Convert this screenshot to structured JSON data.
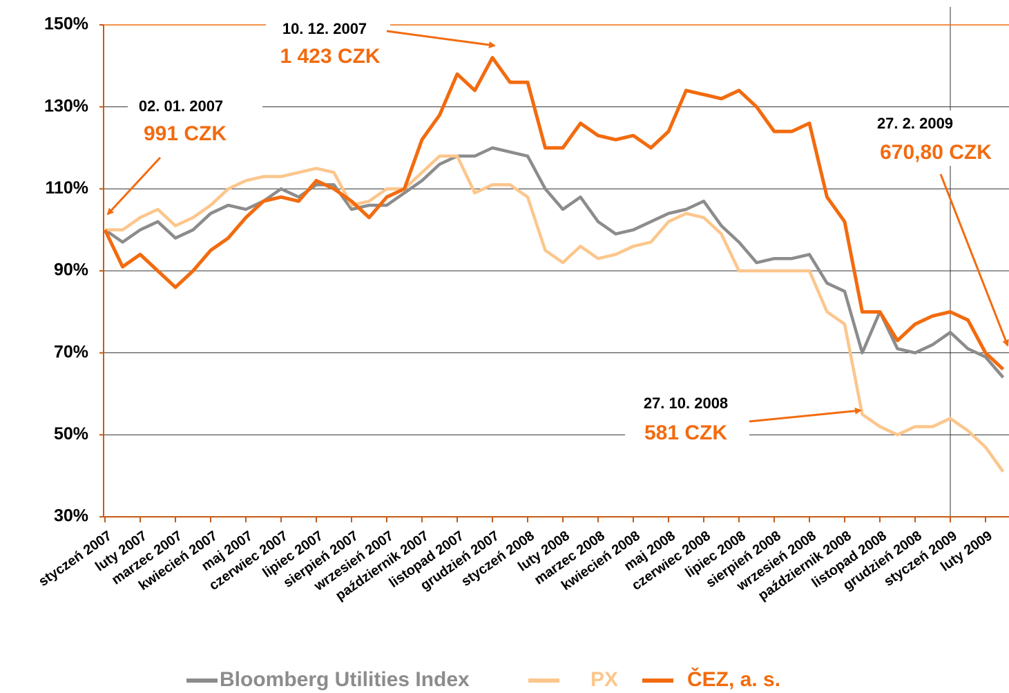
{
  "chart_data": {
    "type": "line",
    "categories": [
      "styczeń 2007",
      null,
      "luty 2007",
      null,
      "marzec 2007",
      null,
      "kwiecień 2007",
      null,
      "maj 2007",
      null,
      "czerwiec 2007",
      null,
      "lipiec 2007",
      null,
      "sierpień 2007",
      null,
      "wrzesień 2007",
      null,
      "październik 2007",
      null,
      "listopad 2007",
      null,
      "grudzień 2007",
      null,
      "styczeń 2008",
      null,
      "luty 2008",
      null,
      "marzec 2008",
      null,
      "kwiecień 2008",
      null,
      "maj 2008",
      null,
      "czerwiec 2008",
      null,
      "lipiec 2008",
      null,
      "sierpień 2008",
      null,
      "wrzesień 2008",
      null,
      "październik 2008",
      null,
      "listopad 2008",
      null,
      "grudzień 2008",
      null,
      "styczeń 2009",
      null,
      "luty 2009",
      null
    ],
    "series": [
      {
        "name": "Bloomberg Utilities Index",
        "color": "#8c8c8c",
        "values": [
          100,
          97,
          100,
          102,
          98,
          100,
          104,
          106,
          105,
          107,
          110,
          108,
          111,
          111,
          105,
          106,
          106,
          109,
          112,
          116,
          118,
          118,
          120,
          119,
          118,
          110,
          105,
          108,
          102,
          99,
          100,
          102,
          104,
          105,
          107,
          101,
          97,
          92,
          93,
          93,
          94,
          87,
          85,
          70,
          80,
          71,
          70,
          72,
          75,
          71,
          69,
          64
        ]
      },
      {
        "name": "PX",
        "color": "#fcc68c",
        "values": [
          100,
          100,
          103,
          105,
          101,
          103,
          106,
          110,
          112,
          113,
          113,
          114,
          115,
          114,
          106,
          107,
          110,
          110,
          114,
          118,
          118,
          109,
          111,
          111,
          108,
          95,
          92,
          96,
          93,
          94,
          96,
          97,
          102,
          104,
          103,
          99,
          90,
          90,
          90,
          90,
          90,
          80,
          77,
          55,
          52,
          50,
          52,
          52,
          54,
          51,
          47,
          41
        ]
      },
      {
        "name": "ČEZ, a. s.",
        "color": "#f26b0f",
        "values": [
          100,
          91,
          94,
          90,
          86,
          90,
          95,
          98,
          103,
          107,
          108,
          107,
          112,
          110,
          107,
          103,
          108,
          110,
          122,
          128,
          138,
          134,
          142,
          136,
          136,
          120,
          120,
          126,
          123,
          122,
          123,
          120,
          124,
          134,
          133,
          132,
          134,
          130,
          124,
          124,
          126,
          108,
          102,
          80,
          80,
          73,
          77,
          79,
          80,
          78,
          70,
          66
        ]
      }
    ],
    "ylim": [
      30,
      150
    ],
    "yticks": [
      {
        "value": 30,
        "label": "30%"
      },
      {
        "value": 50,
        "label": "50%"
      },
      {
        "value": 70,
        "label": "70%"
      },
      {
        "value": 90,
        "label": "90%"
      },
      {
        "value": 110,
        "label": "110%"
      },
      {
        "value": 130,
        "label": "130%"
      },
      {
        "value": 150,
        "label": "150%"
      }
    ],
    "grid": true,
    "legend": "bottom",
    "annotations": [
      {
        "date": "02. 01. 2007",
        "price": "991 CZK"
      },
      {
        "date": "10. 12. 2007",
        "price": "1 423 CZK"
      },
      {
        "date": "27. 10. 2008",
        "price": "581 CZK"
      },
      {
        "date": "27. 2. 2009",
        "price": "670,80 CZK"
      }
    ]
  }
}
